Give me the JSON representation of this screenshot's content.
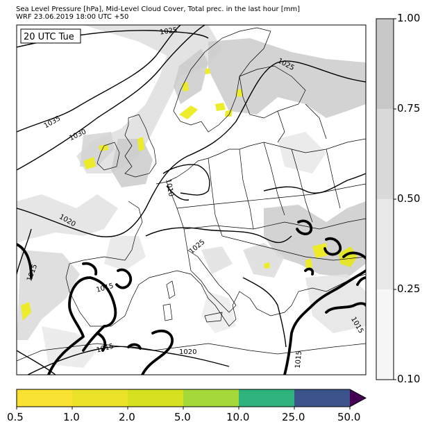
{
  "header": {
    "line1": "Sea Level Pressure [hPa], Mid-Level Cloud Cover, Total prec. in the last hour [mm]",
    "line2": "WRF 23.06.2019 18:00 UTC +50"
  },
  "time_label": "20 UTC Tue",
  "isobar_labels": [
    "1025",
    "1025",
    "1035",
    "1030",
    "1020",
    "1015",
    "1015",
    "1015",
    "1015",
    "1020",
    "1025",
    "1010",
    "1015",
    "1015"
  ],
  "cloud_colorbar": {
    "ticks": [
      "1.00",
      "0.75",
      "0.50",
      "0.25",
      "0.10"
    ],
    "colors": [
      "#c8c8c8",
      "#dadada",
      "#e9e9e9",
      "#f7f7f7"
    ]
  },
  "precip_colorbar": {
    "ticks": [
      "0.5",
      "1.0",
      "2.0",
      "5.0",
      "10.0",
      "25.0",
      "50.0"
    ],
    "colors": [
      "#f9e231",
      "#eae32a",
      "#d5e11f",
      "#a5d93a",
      "#2fb37c",
      "#3b528b",
      "#440154"
    ]
  },
  "colors": {
    "isobar": "#000000",
    "border": "#000000",
    "cloud": "#c9c9c9",
    "precip": "#ecec2a"
  }
}
